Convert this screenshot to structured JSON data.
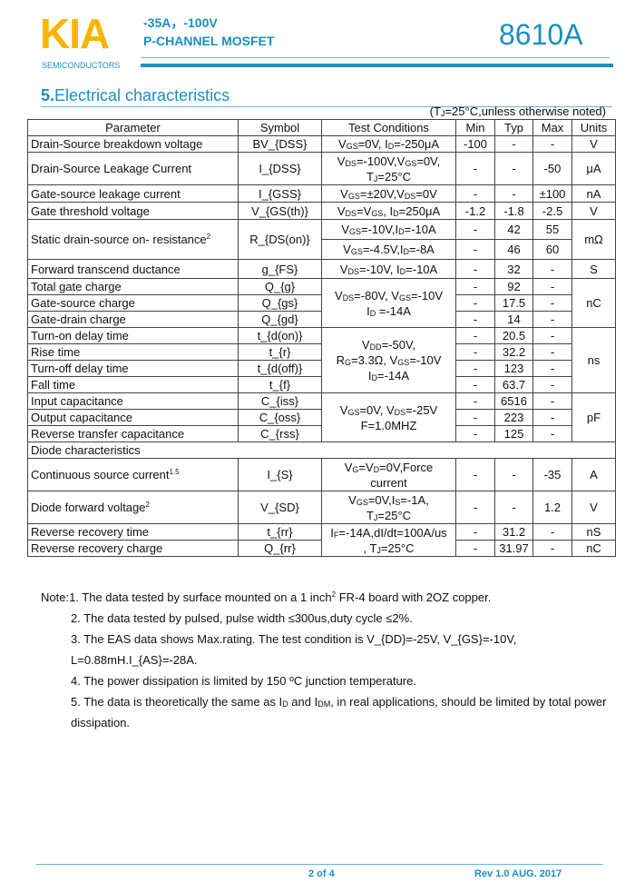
{
  "header": {
    "logo": "KIA",
    "logo_sub": "SEMICONDUCTORS",
    "rating": "-35A，-100V",
    "type": "P-CHANNEL MOSFET",
    "part": "8610A",
    "colors": {
      "logo": "#f7b500",
      "accent": "#1a8fc0"
    }
  },
  "section": {
    "number": "5.",
    "title": "Electrical characteristics",
    "condition": "(T_{J}=25°C,unless otherwise noted)"
  },
  "table": {
    "headers": [
      "Parameter",
      "Symbol",
      "Test Conditions",
      "Min",
      "Typ",
      "Max",
      "Units"
    ],
    "rows": [
      {
        "param": "Drain-Source breakdown voltage",
        "sym": "BV_{DSS}",
        "cond": "V_{GS}=0V, I_{D}=-250μA",
        "min": "-100",
        "typ": "-",
        "max": "-",
        "unit": "V"
      },
      {
        "param": "Drain-Source Leakage Current",
        "sym": "I_{DSS}",
        "cond": "V_{DS}=-100V,V_{GS}=0V,\nT_{J}=25°C",
        "min": "-",
        "typ": "-",
        "max": "-50",
        "unit": "μA"
      },
      {
        "param": "Gate-source leakage current",
        "sym": "I_{GSS}",
        "cond": "V_{GS}=±20V,V_{DS}=0V",
        "min": "-",
        "typ": "-",
        "max": "±100",
        "unit": "nA"
      },
      {
        "param": "Gate threshold voltage",
        "sym": "V_{GS(th)}",
        "cond": "V_{DS}=V_{GS}, I_{D}=250μA",
        "min": "-1.2",
        "typ": "-1.8",
        "max": "-2.5",
        "unit": "V"
      }
    ],
    "rdson": {
      "param": "Static drain-source on- resistance^{2}",
      "sym": "R_{DS(on)}",
      "unit": "mΩ",
      "sub": [
        {
          "cond": "V_{GS}=-10V,I_{D}=-10A",
          "min": "-",
          "typ": "42",
          "max": "55"
        },
        {
          "cond": "V_{GS}=-4.5V,I_{D}=-8A",
          "min": "-",
          "typ": "46",
          "max": "60"
        }
      ]
    },
    "gfs": {
      "param": "Forward transcend ductance",
      "sym": "g_{FS}",
      "cond": "V_{DS}=-10V, I_{D}=-10A",
      "min": "-",
      "typ": "32",
      "max": "-",
      "unit": "S"
    },
    "groups": [
      {
        "cond": "V_{DS}=-80V, V_{GS}=-10V\nI_{D} =-14A",
        "unit": "nC",
        "items": [
          {
            "param": "Total gate charge",
            "sym": "Q_{g}",
            "min": "-",
            "typ": "92",
            "max": "-"
          },
          {
            "param": "Gate-source charge",
            "sym": "Q_{gs}",
            "min": "-",
            "typ": "17.5",
            "max": "-"
          },
          {
            "param": "Gate-drain charge",
            "sym": "Q_{gd}",
            "min": "-",
            "typ": "14",
            "max": "-"
          }
        ]
      },
      {
        "cond": "V_{DD}=-50V,\nR_{G}=3.3Ω, V_{GS}=-10V\nI_{D}=-14A",
        "unit": "ns",
        "items": [
          {
            "param": "Turn-on delay time",
            "sym": "t_{d(on)}",
            "min": "-",
            "typ": "20.5",
            "max": "-"
          },
          {
            "param": "Rise time",
            "sym": "t_{r}",
            "min": "-",
            "typ": "32.2",
            "max": "-"
          },
          {
            "param": "Turn-off delay time",
            "sym": "t_{d(off)}",
            "min": "-",
            "typ": "123",
            "max": "-"
          },
          {
            "param": "Fall time",
            "sym": "t_{f}",
            "min": "-",
            "typ": "63.7",
            "max": "-"
          }
        ]
      },
      {
        "cond": "V_{GS}=0V, V_{DS}=-25V\nF=1.0MHZ",
        "unit": "pF",
        "items": [
          {
            "param": "Input capacitance",
            "sym": "C_{iss}",
            "min": "-",
            "typ": "6516",
            "max": "-"
          },
          {
            "param": "Output capacitance",
            "sym": "C_{oss}",
            "min": "-",
            "typ": "223",
            "max": "-"
          },
          {
            "param": "Reverse transfer capacitance",
            "sym": "C_{rss}",
            "min": "-",
            "typ": "125",
            "max": "-"
          }
        ]
      }
    ],
    "diode_heading": "Diode characteristics",
    "diode_rows": [
      {
        "param": "Continuous source current^{1.5}",
        "sym": "I_{S}",
        "cond": "V_{G}=V_{D}=0V,Force\ncurrent",
        "min": "-",
        "typ": "-",
        "max": "-35",
        "unit": "A"
      },
      {
        "param": "Diode forward voltage^{2}",
        "sym": "V_{SD}",
        "cond": "V_{GS}=0V,I_{S}=-1A,\nT_{J}=25°C",
        "min": "-",
        "typ": "-",
        "max": "1.2",
        "unit": "V"
      }
    ],
    "recovery": {
      "cond": "I_{F}=-14A,dI/dt=100A/us\n, T_{J}=25°C",
      "items": [
        {
          "param": "Reverse recovery time",
          "sym": "t_{rr}",
          "min": "-",
          "typ": "31.2",
          "max": "-",
          "unit": "nS"
        },
        {
          "param": "Reverse recovery charge",
          "sym": "Q_{rr}",
          "min": "-",
          "typ": "31.97",
          "max": "-",
          "unit": "nC"
        }
      ]
    }
  },
  "notes": [
    "Note:1. The data tested by surface mounted on a 1 inch^{2} FR-4 board with 2OZ copper.",
    "2. The data tested by pulsed, pulse width ≤300us,duty cycle ≤2%.",
    "3. The EAS data shows Max.rating. The test condition is V_{DD}=-25V, V_{GS}=-10V, L=0.88mH.I_{AS}=-28A.",
    "4. The power dissipation is limited by 150 ºC junction temperature.",
    "5. The data is theoretically the same as I_{D} and I_{DM}, in real applications, should be limited by total power dissipation."
  ],
  "footer": {
    "page": "2 of 4",
    "revision": "Rev 1.0 AUG. 2017"
  }
}
